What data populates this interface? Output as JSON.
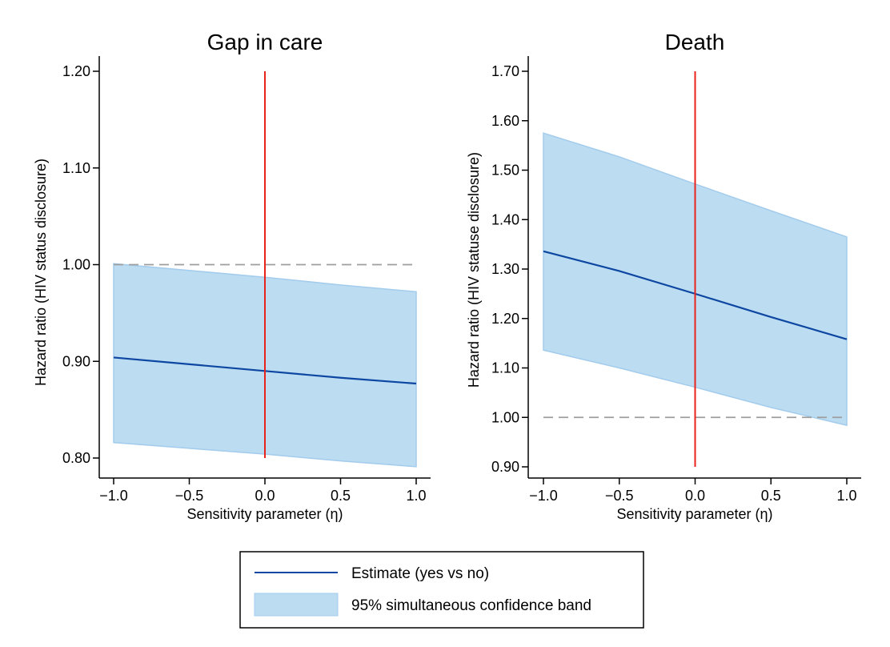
{
  "chart_data": [
    {
      "type": "line",
      "title": "Gap in care",
      "xlabel": "Sensitivity parameter (η)",
      "ylabel": "Hazard ratio (HIV status disclosure)",
      "xlim": [
        -1.0,
        1.0
      ],
      "ylim": [
        0.8,
        1.2
      ],
      "x_ticks": [
        -1.0,
        -0.5,
        0.0,
        0.5,
        1.0
      ],
      "x_tick_labels": [
        "−1.0",
        "−0.5",
        "0.0",
        "0.5",
        "1.0"
      ],
      "y_ticks": [
        0.8,
        0.9,
        1.0,
        1.1,
        1.2
      ],
      "y_tick_labels": [
        "0.80",
        "0.90",
        "1.00",
        "1.10",
        "1.20"
      ],
      "x": [
        -1.0,
        -0.5,
        0.0,
        0.5,
        1.0
      ],
      "estimate": [
        0.904,
        0.897,
        0.89,
        0.883,
        0.877
      ],
      "band_lower": [
        0.816,
        0.81,
        0.804,
        0.797,
        0.791
      ],
      "band_upper": [
        1.001,
        0.994,
        0.987,
        0.979,
        0.972
      ],
      "reference_hline": 1.0,
      "reference_vline": {
        "x": 0.0,
        "y_range": [
          0.8,
          1.2
        ]
      },
      "grid": false
    },
    {
      "type": "line",
      "title": "Death",
      "xlabel": "Sensitivity parameter (η)",
      "ylabel": "Hazard ratio (HIV statuse disclosure)",
      "xlim": [
        -1.0,
        1.0
      ],
      "ylim": [
        0.9,
        1.7
      ],
      "x_ticks": [
        -1.0,
        -0.5,
        0.0,
        0.5,
        1.0
      ],
      "x_tick_labels": [
        "−1.0",
        "−0.5",
        "0.0",
        "0.5",
        "1.0"
      ],
      "y_ticks": [
        0.9,
        1.0,
        1.1,
        1.2,
        1.3,
        1.4,
        1.5,
        1.6,
        1.7
      ],
      "y_tick_labels": [
        "0.90",
        "1.00",
        "1.10",
        "1.20",
        "1.30",
        "1.40",
        "1.50",
        "1.60",
        "1.70"
      ],
      "x": [
        -1.0,
        -0.5,
        0.0,
        0.5,
        1.0
      ],
      "estimate": [
        1.336,
        1.296,
        1.25,
        1.203,
        1.158
      ],
      "band_lower": [
        1.136,
        1.1,
        1.061,
        1.02,
        0.984
      ],
      "band_upper": [
        1.575,
        1.527,
        1.472,
        1.418,
        1.365
      ],
      "reference_hline": 1.0,
      "reference_vline": {
        "x": 0.0,
        "y_range": [
          0.9,
          1.7
        ]
      },
      "grid": false
    }
  ],
  "legend": {
    "placement": "bottom-center",
    "entries": [
      {
        "label": "Estimate (yes vs no)",
        "kind": "line",
        "color": "#0d47a1"
      },
      {
        "label": "95% simultaneous confidence band",
        "kind": "area",
        "color": "#bcdcf2"
      }
    ]
  },
  "colors": {
    "estimate": "#0d47a1",
    "band_fill": "#bcdcf2",
    "band_edge": "#a3ccec",
    "reference_vline": "#e8231c",
    "reference_hline": "#9e9e9e",
    "axis": "#000000"
  }
}
